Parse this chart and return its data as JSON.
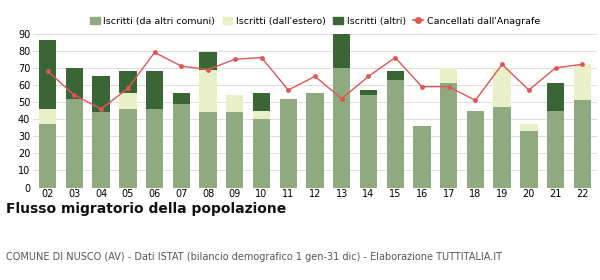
{
  "years": [
    "02",
    "03",
    "04",
    "05",
    "06",
    "07",
    "08",
    "09",
    "10",
    "11",
    "12",
    "13",
    "14",
    "15",
    "16",
    "17",
    "18",
    "19",
    "20",
    "21",
    "22"
  ],
  "iscritti_altri_comuni": [
    37,
    52,
    44,
    46,
    46,
    49,
    44,
    44,
    40,
    52,
    55,
    70,
    54,
    63,
    36,
    61,
    45,
    47,
    33,
    45,
    51
  ],
  "iscritti_estero_full": [
    9,
    0,
    0,
    9,
    0,
    0,
    25,
    10,
    5,
    0,
    0,
    0,
    0,
    0,
    0,
    9,
    0,
    23,
    4,
    0,
    21
  ],
  "iscritti_altri_top": [
    40,
    18,
    21,
    13,
    22,
    6,
    10,
    0,
    10,
    0,
    0,
    20,
    3,
    5,
    0,
    0,
    0,
    0,
    0,
    16,
    0
  ],
  "total_bar": [
    86,
    70,
    65,
    68,
    68,
    55,
    79,
    54,
    55,
    52,
    55,
    90,
    57,
    68,
    36,
    70,
    45,
    70,
    37,
    61,
    72
  ],
  "cancellati": [
    68,
    54,
    46,
    58,
    79,
    71,
    69,
    75,
    76,
    57,
    65,
    52,
    65,
    76,
    59,
    59,
    51,
    72,
    57,
    70,
    72
  ],
  "bar_base_color": "#8faa7e",
  "bar_estero_color": "#e8f0c8",
  "bar_altri_color": "#3a6635",
  "line_color": "#e05555",
  "bg_color": "#ffffff",
  "grid_color": "#d8d8d8",
  "title": "Flusso migratorio della popolazione",
  "subtitle": "COMUNE DI NUSCO (AV) - Dati ISTAT (bilancio demografico 1 gen-31 dic) - Elaborazione TUTTITALIA.IT",
  "title_fontsize": 10,
  "subtitle_fontsize": 7,
  "legend_labels": [
    "Iscritti (da altri comuni)",
    "Iscritti (dall'estero)",
    "Iscritti (altri)",
    "Cancellati dall'Anagrafe"
  ],
  "legend_colors": [
    "#8faa7e",
    "#e8f0c8",
    "#3a6635",
    "#e05555"
  ],
  "ylim": [
    0,
    90
  ],
  "yticks": [
    0,
    10,
    20,
    30,
    40,
    50,
    60,
    70,
    80,
    90
  ]
}
